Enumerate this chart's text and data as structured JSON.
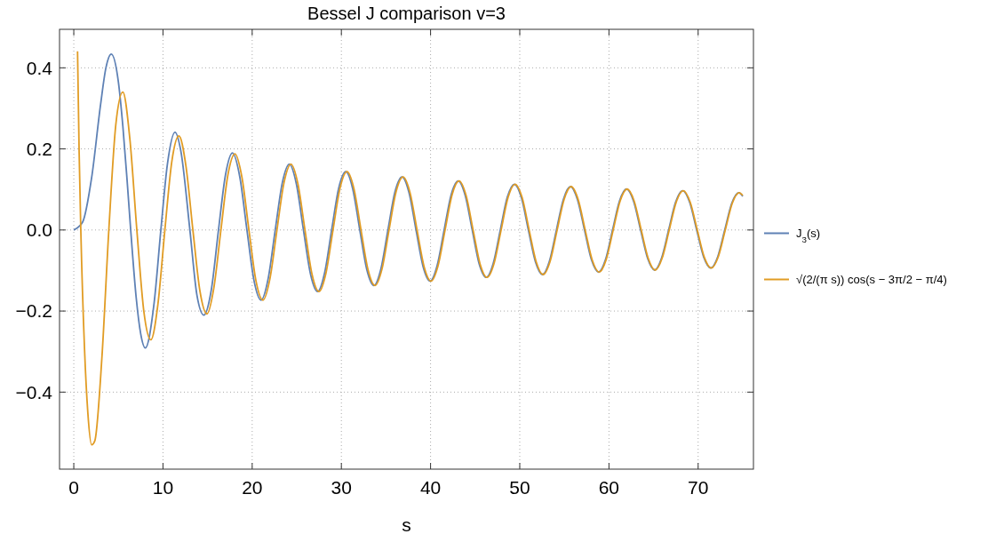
{
  "chart_data": {
    "type": "line",
    "title": "Bessel J comparison v=3",
    "xlabel": "s",
    "xlim": [
      -1.6,
      76.2
    ],
    "ylim": [
      -0.59,
      0.495
    ],
    "xticks": [
      0,
      10,
      20,
      30,
      40,
      50,
      60,
      70
    ],
    "yticks": [
      -0.4,
      -0.2,
      {
        "value": 0,
        "label": "0.0"
      },
      0.2,
      0.4
    ],
    "grid": true,
    "legend": "right",
    "marker": "none",
    "line_style": "solid",
    "series": [
      {
        "name": "J$_{3}$(s)",
        "color": "#5e81b5",
        "x": [
          0,
          1,
          2,
          3,
          3.6,
          4.2,
          5,
          5.5,
          6,
          6.38,
          7,
          7.5,
          8.015,
          9,
          9.761,
          10.5,
          11.346,
          12,
          13.015,
          13.8,
          14.586,
          15.4,
          16.223,
          17,
          17.789,
          18.618,
          19.412,
          20.206,
          21.0,
          21.792,
          22.585,
          23.376,
          24.167,
          24.959,
          25.749,
          26.54,
          27.33,
          28.119,
          28.909,
          29.698,
          30.488,
          31.277,
          32.065,
          32.854,
          33.642,
          34.431,
          35.219,
          36.007,
          36.795,
          37.583,
          38.371,
          39.159,
          39.946,
          40.734,
          41.521,
          42.309,
          43.096,
          43.883,
          44.67,
          45.457,
          46.244,
          47.031,
          47.818,
          48.605,
          49.392,
          50.178,
          50.965,
          51.752,
          52.539,
          53.325,
          54.111,
          54.898,
          55.685,
          56.472,
          57.258,
          58.044,
          58.831,
          59.617,
          60.404,
          61.19,
          61.975,
          62.762,
          63.548,
          64.335,
          65.121,
          65.907,
          66.693,
          67.479,
          68.266,
          69.052,
          69.837,
          70.624,
          71.41,
          72.196,
          72.982,
          73.768,
          74.554,
          75
        ],
        "values": [
          0,
          0.02,
          0.129,
          0.309,
          0.4,
          0.434,
          0.365,
          0.256,
          0.115,
          0,
          -0.168,
          -0.256,
          -0.291,
          -0.181,
          0,
          0.163,
          0.241,
          0.195,
          0,
          -0.16,
          -0.21,
          -0.15,
          0,
          0.135,
          0.19,
          0.13,
          0,
          -0.125,
          -0.173,
          -0.12,
          0,
          0.116,
          0.162,
          0.113,
          0,
          -0.109,
          -0.152,
          -0.106,
          0,
          0.103,
          0.144,
          0.101,
          0,
          -0.098,
          -0.137,
          -0.096,
          0,
          0.094,
          0.131,
          0.092,
          0,
          -0.09,
          -0.126,
          -0.088,
          0,
          0.087,
          0.121,
          0.085,
          0,
          -0.084,
          -0.117,
          -0.082,
          0,
          0.081,
          0.113,
          0.08,
          0,
          -0.078,
          -0.11,
          -0.077,
          0,
          0.076,
          0.107,
          0.075,
          0,
          -0.074,
          -0.104,
          -0.073,
          0,
          0.072,
          0.101,
          0.071,
          0,
          -0.07,
          -0.099,
          -0.069,
          0,
          0.069,
          0.097,
          0.068,
          0,
          -0.067,
          -0.094,
          -0.066,
          0,
          0.066,
          0.092,
          0.083
        ]
      },
      {
        "name": "√(2/(π s)) cos(s − 3π/2 − π/4)",
        "color": "#e19c24",
        "x": [
          0.42,
          0.6,
          0.786,
          1.2,
          1.571,
          2.0,
          2.356,
          3.142,
          3.927,
          4.712,
          5.498,
          6.283,
          7.069,
          7.854,
          8.639,
          9.425,
          10.21,
          10.996,
          11.781,
          12.566,
          13.352,
          14.137,
          14.923,
          15.708,
          16.493,
          17.279,
          18.064,
          18.85,
          19.635,
          20.42,
          21.206,
          21.991,
          22.777,
          23.562,
          24.347,
          25.133,
          25.918,
          26.704,
          27.489,
          28.274,
          29.06,
          29.845,
          30.631,
          31.416,
          32.201,
          32.987,
          33.772,
          34.558,
          35.343,
          36.128,
          36.914,
          37.699,
          38.485,
          39.27,
          40.055,
          40.841,
          41.626,
          42.412,
          43.197,
          43.982,
          44.768,
          45.553,
          46.338,
          47.124,
          47.909,
          48.695,
          49.48,
          50.265,
          51.051,
          51.836,
          52.622,
          53.407,
          54.192,
          54.978,
          55.763,
          56.549,
          57.334,
          58.119,
          58.905,
          59.69,
          60.476,
          61.261,
          62.046,
          62.832,
          63.617,
          64.403,
          65.188,
          65.973,
          66.759,
          67.544,
          68.33,
          69.115,
          69.9,
          70.686,
          71.471,
          72.257,
          73.042,
          73.827,
          74.613,
          75
        ],
        "values": [
          0.441,
          0.19,
          0,
          -0.292,
          -0.45,
          -0.53,
          -0.52,
          -0.318,
          0,
          0.26,
          0.34,
          0.225,
          0,
          -0.201,
          -0.271,
          -0.184,
          0,
          0.17,
          0.232,
          0.159,
          0,
          -0.15,
          -0.207,
          -0.142,
          0,
          0.136,
          0.188,
          0.13,
          0,
          -0.125,
          -0.173,
          -0.12,
          0,
          0.116,
          0.162,
          0.113,
          0,
          -0.109,
          -0.152,
          -0.106,
          0,
          0.103,
          0.144,
          0.101,
          0,
          -0.098,
          -0.137,
          -0.096,
          0,
          0.094,
          0.131,
          0.092,
          0,
          -0.09,
          -0.126,
          -0.088,
          0,
          0.087,
          0.121,
          0.085,
          0,
          -0.084,
          -0.117,
          -0.082,
          0,
          0.081,
          0.113,
          0.08,
          0,
          -0.078,
          -0.11,
          -0.077,
          0,
          0.076,
          0.107,
          0.075,
          0,
          -0.074,
          -0.104,
          -0.073,
          0,
          0.072,
          0.101,
          0.071,
          0,
          -0.07,
          -0.099,
          -0.069,
          0,
          0.069,
          0.097,
          0.068,
          0,
          -0.067,
          -0.094,
          -0.066,
          0,
          0.066,
          0.092,
          0.085
        ]
      }
    ]
  }
}
